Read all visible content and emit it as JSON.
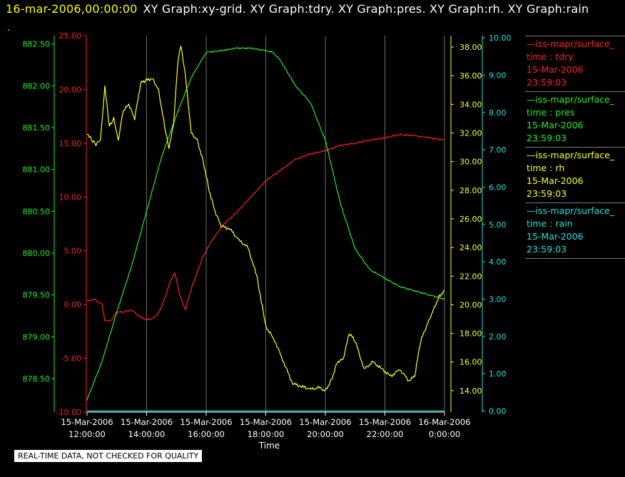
{
  "header": {
    "date": "16-mar-2006,00:00:00",
    "titles": "XY Graph:xy-grid.  XY Graph:tdry.  XY Graph:pres.  XY Graph:rh.  XY Graph:rain"
  },
  "marker": ".",
  "disclaimer": "REAL-TIME DATA, NOT CHECKED FOR QUALITY",
  "legend": [
    {
      "line": "—iss-mapr/surface_",
      "field": "time : tdry",
      "date": "15-Mar-2006",
      "time": "23:59:03",
      "color": "#ff2020"
    },
    {
      "line": "—iss-mapr/surface_",
      "field": "time : pres",
      "date": "15-Mar-2006",
      "time": "23:59:03",
      "color": "#22ee22"
    },
    {
      "line": "—iss-mapr/surface_",
      "field": "time : rh",
      "date": "15-Mar-2006",
      "time": "23:59:03",
      "color": "#ffff22"
    },
    {
      "line": "—iss-mapr/surface_",
      "field": "time : rain",
      "date": "15-Mar-2006",
      "time": "23:59:03",
      "color": "#22e0e0"
    }
  ],
  "chart_data": {
    "type": "line",
    "xlabel": "Time",
    "x_ticks": [
      {
        "h": 12,
        "date": "15-Mar-2006",
        "time": "12:00:00"
      },
      {
        "h": 14,
        "date": "15-Mar-2006",
        "time": "14:00:00"
      },
      {
        "h": 16,
        "date": "15-Mar-2006",
        "time": "16:00:00"
      },
      {
        "h": 18,
        "date": "15-Mar-2006",
        "time": "18:00:00"
      },
      {
        "h": 20,
        "date": "15-Mar-2006",
        "time": "20:00:00"
      },
      {
        "h": 22,
        "date": "15-Mar-2006",
        "time": "22:00:00"
      },
      {
        "h": 24,
        "date": "16-Mar-2006",
        "time": "0:00:00"
      }
    ],
    "xlim": [
      12,
      24
    ],
    "grid": true,
    "axes": {
      "tdry": {
        "color": "#ff2020",
        "ylim": [
          -10,
          25
        ],
        "ticks": [
          "-10.00",
          "-5.00",
          "0.00",
          "5.00",
          "10.00",
          "15.00",
          "20.00",
          "25.00"
        ]
      },
      "pres": {
        "color": "#22ee22",
        "ylim": [
          878.1,
          882.6
        ],
        "ticks": [
          "878.50",
          "879.00",
          "879.50",
          "880.00",
          "880.50",
          "881.00",
          "881.50",
          "882.00",
          "882.50"
        ]
      },
      "rh": {
        "color": "#ffff22",
        "ylim": [
          12.5,
          38.8
        ],
        "ticks": [
          "14.00",
          "16.00",
          "18.00",
          "20.00",
          "22.00",
          "24.00",
          "26.00",
          "28.00",
          "30.00",
          "32.00",
          "34.00",
          "36.00",
          "38.00"
        ]
      },
      "rain": {
        "color": "#22e0e0",
        "ylim": [
          -0.03,
          10.06
        ],
        "ticks": [
          "0.00",
          "1.00",
          "2.00",
          "3.00",
          "4.00",
          "5.00",
          "6.00",
          "7.00",
          "8.00",
          "9.00",
          "10.00"
        ]
      }
    },
    "series": [
      {
        "name": "tdry",
        "axis": "tdry",
        "color": "#ff2020",
        "x": [
          12.0,
          12.25,
          12.5,
          12.6,
          12.8,
          13.0,
          13.2,
          13.5,
          13.8,
          14.0,
          14.2,
          14.4,
          14.6,
          14.8,
          14.95,
          15.1,
          15.3,
          15.5,
          15.7,
          15.9,
          16.2,
          16.6,
          17.0,
          17.5,
          18.0,
          18.5,
          19.0,
          19.5,
          20.0,
          20.5,
          21.0,
          21.5,
          22.0,
          22.5,
          23.0,
          23.5,
          24.0
        ],
        "y": [
          0.3,
          0.5,
          0.0,
          -1.5,
          -1.5,
          -0.7,
          -0.7,
          -0.5,
          -1.2,
          -1.4,
          -1.3,
          -0.8,
          0.5,
          2.2,
          3.0,
          1.0,
          -0.5,
          1.5,
          3.0,
          4.5,
          6.0,
          7.5,
          8.5,
          10.0,
          11.5,
          12.5,
          13.5,
          14.0,
          14.3,
          14.8,
          15.0,
          15.3,
          15.5,
          15.8,
          15.7,
          15.5,
          15.3
        ]
      },
      {
        "name": "pres",
        "axis": "pres",
        "color": "#22ee22",
        "x": [
          12.0,
          12.5,
          13.0,
          13.5,
          14.0,
          14.5,
          15.0,
          15.5,
          16.0,
          16.5,
          17.0,
          17.5,
          18.0,
          18.25,
          18.5,
          19.0,
          19.5,
          20.0,
          20.5,
          21.0,
          21.5,
          22.0,
          22.5,
          23.0,
          23.5,
          24.0
        ],
        "y": [
          878.25,
          878.7,
          879.3,
          879.85,
          880.5,
          881.15,
          881.65,
          882.1,
          882.4,
          882.42,
          882.45,
          882.45,
          882.42,
          882.4,
          882.3,
          882.0,
          881.8,
          881.35,
          880.6,
          880.05,
          879.8,
          879.7,
          879.6,
          879.55,
          879.5,
          879.45
        ]
      },
      {
        "name": "rh",
        "axis": "rh",
        "color": "#ffff22",
        "x": [
          12.0,
          12.15,
          12.3,
          12.45,
          12.6,
          12.75,
          12.9,
          13.05,
          13.2,
          13.4,
          13.6,
          13.8,
          14.0,
          14.2,
          14.4,
          14.6,
          14.75,
          14.9,
          15.05,
          15.15,
          15.3,
          15.5,
          15.7,
          15.9,
          16.1,
          16.3,
          16.5,
          16.8,
          17.1,
          17.4,
          17.7,
          18.0,
          18.3,
          18.6,
          18.9,
          19.2,
          19.5,
          19.8,
          20.0,
          20.2,
          20.4,
          20.6,
          20.8,
          21.0,
          21.3,
          21.6,
          21.9,
          22.2,
          22.5,
          22.8,
          23.0,
          23.2,
          23.4,
          23.6,
          23.8,
          24.0
        ],
        "y": [
          32.0,
          31.5,
          31.2,
          31.5,
          35.2,
          32.5,
          33.0,
          31.5,
          33.5,
          34.0,
          33.0,
          35.5,
          35.7,
          35.8,
          35.0,
          32.5,
          31.0,
          32.5,
          37.0,
          38.1,
          36.0,
          32.0,
          31.5,
          30.0,
          28.0,
          26.5,
          25.5,
          25.3,
          24.5,
          24.0,
          22.0,
          18.5,
          17.5,
          16.0,
          14.5,
          14.3,
          14.1,
          14.2,
          14.0,
          14.7,
          16.0,
          16.2,
          18.0,
          17.5,
          15.5,
          16.0,
          15.5,
          15.0,
          15.5,
          14.7,
          15.0,
          17.5,
          18.5,
          19.5,
          20.5,
          21.0
        ]
      },
      {
        "name": "rain",
        "axis": "rain",
        "color": "#22e0e0",
        "x": [
          12.0,
          24.0
        ],
        "y": [
          0.0,
          0.0
        ]
      }
    ]
  }
}
